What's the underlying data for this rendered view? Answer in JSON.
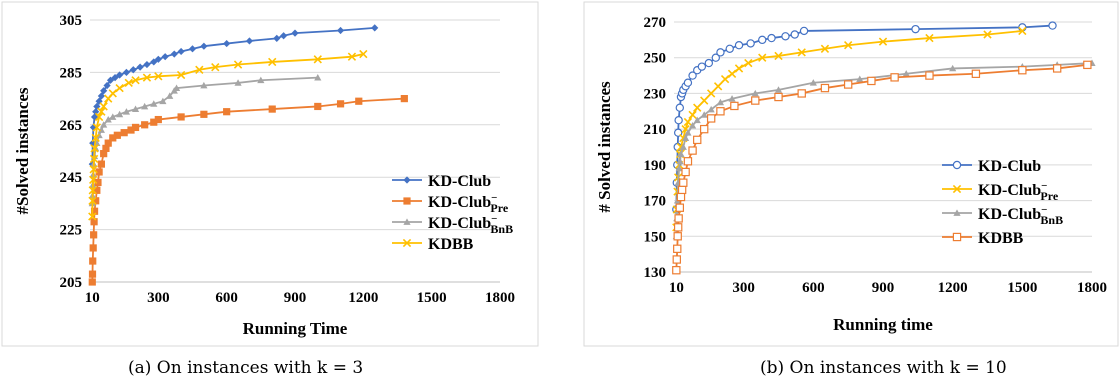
{
  "captions": {
    "a": "(a) On instances with k = 3",
    "b": "(b) On instances with k = 10"
  },
  "chart_data": [
    {
      "type": "line",
      "xlabel": "Running Time",
      "ylabel": "#Solved instances",
      "xlim": [
        0,
        1800
      ],
      "ylim": [
        205,
        305
      ],
      "xticks": [
        "10",
        "300",
        "600",
        "900",
        "1200",
        "1500",
        "1800"
      ],
      "xtick_values": [
        10,
        300,
        600,
        900,
        1200,
        1500,
        1800
      ],
      "yticks": [
        205,
        225,
        245,
        265,
        285,
        305
      ],
      "grid": "horizontal",
      "legend_position": "right",
      "series": [
        {
          "name": "KD-Club",
          "color": "#4472c4",
          "marker": "diamond",
          "x": [
            10,
            12,
            15,
            20,
            25,
            30,
            40,
            50,
            60,
            75,
            90,
            110,
            130,
            160,
            190,
            220,
            250,
            280,
            300,
            330,
            370,
            400,
            450,
            500,
            600,
            700,
            820,
            850,
            900,
            1100,
            1250
          ],
          "y": [
            250,
            258,
            264,
            268,
            270,
            272,
            274,
            276,
            278,
            280,
            282,
            283,
            284,
            285,
            286,
            287,
            288,
            289,
            290,
            291,
            292,
            293,
            294,
            295,
            296,
            297,
            298,
            299,
            300,
            301,
            302
          ]
        },
        {
          "name": "KD-Club_Pre",
          "label_main": "KD-Club",
          "label_sup": "−",
          "label_sub": "Pre",
          "color": "#ed7d31",
          "marker": "square",
          "x": [
            10,
            11,
            12,
            14,
            16,
            18,
            20,
            25,
            30,
            35,
            40,
            50,
            60,
            70,
            80,
            100,
            120,
            150,
            180,
            200,
            240,
            280,
            300,
            400,
            500,
            600,
            800,
            1000,
            1100,
            1180,
            1380
          ],
          "y": [
            205,
            208,
            213,
            218,
            223,
            228,
            232,
            236,
            240,
            243,
            247,
            250,
            254,
            256,
            258,
            260,
            261,
            262,
            263,
            264,
            265,
            266,
            267,
            268,
            269,
            270,
            271,
            272,
            273,
            274,
            275
          ]
        },
        {
          "name": "KD-Club_BnB",
          "label_main": "KD-Club",
          "label_sup": "−",
          "label_sub": "BnB",
          "color": "#a5a5a5",
          "marker": "triangle",
          "x": [
            10,
            11,
            12,
            14,
            16,
            20,
            25,
            30,
            40,
            50,
            60,
            80,
            100,
            130,
            160,
            200,
            240,
            280,
            320,
            350,
            370,
            380,
            500,
            650,
            750,
            1000
          ],
          "y": [
            235,
            238,
            242,
            246,
            250,
            253,
            256,
            258,
            261,
            263,
            265,
            267,
            268,
            269,
            270,
            271,
            272,
            273,
            274,
            276,
            278,
            279,
            280,
            281,
            282,
            283
          ]
        },
        {
          "name": "KDBB",
          "color": "#ffc000",
          "marker": "x",
          "x": [
            10,
            11,
            12,
            14,
            16,
            18,
            20,
            25,
            30,
            40,
            50,
            60,
            80,
            100,
            130,
            170,
            200,
            250,
            300,
            400,
            480,
            550,
            650,
            800,
            1000,
            1150,
            1200
          ],
          "y": [
            230,
            236,
            240,
            244,
            248,
            252,
            256,
            260,
            264,
            268,
            270,
            272,
            275,
            277,
            279,
            281,
            282,
            283,
            283.5,
            284,
            286,
            287,
            288,
            289,
            290,
            291,
            292
          ]
        }
      ]
    },
    {
      "type": "line",
      "xlabel": "Running time",
      "ylabel": "# Solved instances",
      "xlim": [
        0,
        1800
      ],
      "ylim": [
        130,
        270
      ],
      "xticks": [
        "10",
        "300",
        "600",
        "900",
        "1200",
        "1500",
        "1800"
      ],
      "xtick_values": [
        10,
        300,
        600,
        900,
        1200,
        1500,
        1800
      ],
      "yticks": [
        130,
        150,
        170,
        190,
        210,
        230,
        250,
        270
      ],
      "grid": "horizontal",
      "legend_position": "right",
      "series": [
        {
          "name": "KD-Club",
          "color": "#4472c4",
          "marker": "circle",
          "x": [
            10,
            12,
            14,
            16,
            18,
            20,
            25,
            30,
            35,
            40,
            50,
            60,
            80,
            100,
            120,
            150,
            180,
            200,
            240,
            280,
            330,
            380,
            420,
            480,
            520,
            560,
            1040,
            1500,
            1630
          ],
          "y": [
            165,
            180,
            190,
            200,
            208,
            215,
            222,
            228,
            230,
            232,
            234,
            236,
            240,
            243,
            245,
            247,
            250,
            253,
            255,
            257,
            258,
            260,
            261,
            262,
            263,
            265,
            266,
            267,
            268
          ]
        },
        {
          "name": "KD-Club_Pre",
          "label_main": "KD-Club",
          "label_sup": "−",
          "label_sub": "Pre",
          "color": "#ffc000",
          "marker": "x",
          "x": [
            10,
            12,
            15,
            18,
            22,
            26,
            30,
            40,
            50,
            60,
            80,
            100,
            130,
            160,
            190,
            220,
            250,
            280,
            320,
            380,
            450,
            550,
            650,
            750,
            900,
            1100,
            1350,
            1500
          ],
          "y": [
            155,
            165,
            175,
            183,
            190,
            196,
            200,
            205,
            210,
            214,
            218,
            222,
            226,
            230,
            234,
            238,
            241,
            244,
            247,
            250,
            251,
            253,
            255,
            257,
            259,
            261,
            263,
            265
          ]
        },
        {
          "name": "KD-Club_BnB",
          "label_main": "KD-Club",
          "label_sup": "−",
          "label_sub": "BnB",
          "color": "#a5a5a5",
          "marker": "triangle",
          "x": [
            10,
            12,
            15,
            18,
            22,
            26,
            30,
            40,
            50,
            60,
            80,
            100,
            130,
            160,
            200,
            250,
            350,
            450,
            600,
            800,
            1000,
            1200,
            1500,
            1650,
            1800
          ],
          "y": [
            150,
            160,
            170,
            180,
            188,
            192,
            196,
            200,
            205,
            208,
            212,
            215,
            218,
            221,
            225,
            227,
            230,
            232,
            236,
            238,
            241,
            244,
            245,
            246,
            247
          ]
        },
        {
          "name": "KDBB",
          "color": "#ed7d31",
          "marker": "square",
          "x": [
            10,
            12,
            14,
            16,
            18,
            20,
            25,
            30,
            35,
            40,
            50,
            60,
            80,
            100,
            130,
            160,
            200,
            260,
            350,
            450,
            550,
            650,
            750,
            850,
            950,
            1100,
            1300,
            1500,
            1650,
            1780
          ],
          "y": [
            131,
            137,
            143,
            150,
            155,
            160,
            166,
            172,
            176,
            180,
            186,
            192,
            198,
            204,
            210,
            216,
            220,
            223,
            226,
            228,
            230,
            233,
            235,
            237,
            239,
            240,
            241,
            243,
            244,
            246
          ]
        }
      ]
    }
  ]
}
